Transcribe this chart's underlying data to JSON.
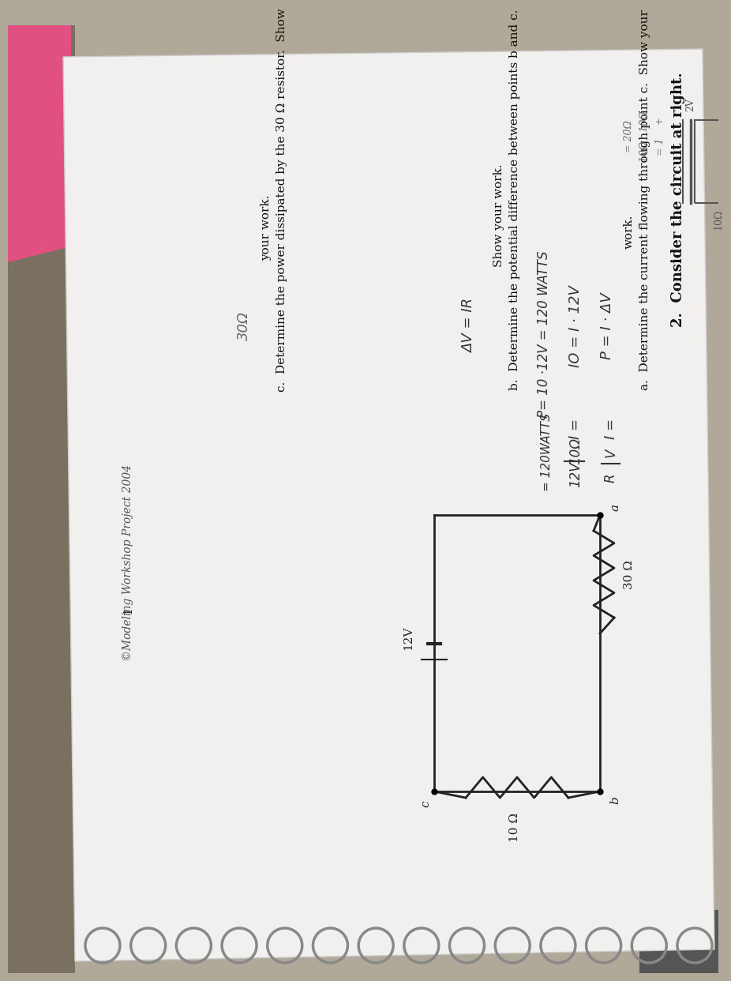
{
  "bg_color": "#b0a898",
  "paper_color": "#f0eeec",
  "rotation_deg": 90,
  "spiral_color": "#888888",
  "text_color": "#111111",
  "hand_color": "#333333",
  "circuit_color": "#222222",
  "problem_num": "2.  Consider the circuit at right.",
  "part_a": "a.  Determine the current flowing through point c.  Show your",
  "part_a2": "work.",
  "part_b": "b.  Determine the potential difference between points b and c.",
  "part_b2": "Show your work.",
  "part_c": "c.  Determine the power dissipated by the 30 Ω resistor.  Show",
  "part_c2": "your work.",
  "footer": "©Modeling Workshop Project 2004",
  "page": "1",
  "hand_P_IAV": "P = I · ΔV",
  "hand_IO_I12V": "IO = I · 12V",
  "hand_P_120": "P= 10 ·12V = 120 WATTS",
  "hand_I_eq": "I =",
  "hand_V": "V",
  "hand_R": "R",
  "hand_I_10_12": "I =",
  "hand_10ohm": "10Ω",
  "hand_12V_denom": "12V",
  "hand_120WATTS": "= 120WATTS",
  "hand_dV_IR": "ΔV = IR",
  "hand_30ohm": "30Ω",
  "circuit_12V": "12V",
  "circuit_a": "a",
  "circuit_b": "b",
  "circuit_c": "c",
  "circuit_30ohm": "30 Ω",
  "circuit_10ohm": "10 Ω",
  "top_right_note1": "= 1    +",
  "top_right_note2": "10Ω   10Ω",
  "top_right_note3": "= 20Ω",
  "small_batt_label": "2V",
  "small_res_label": "10Ω"
}
